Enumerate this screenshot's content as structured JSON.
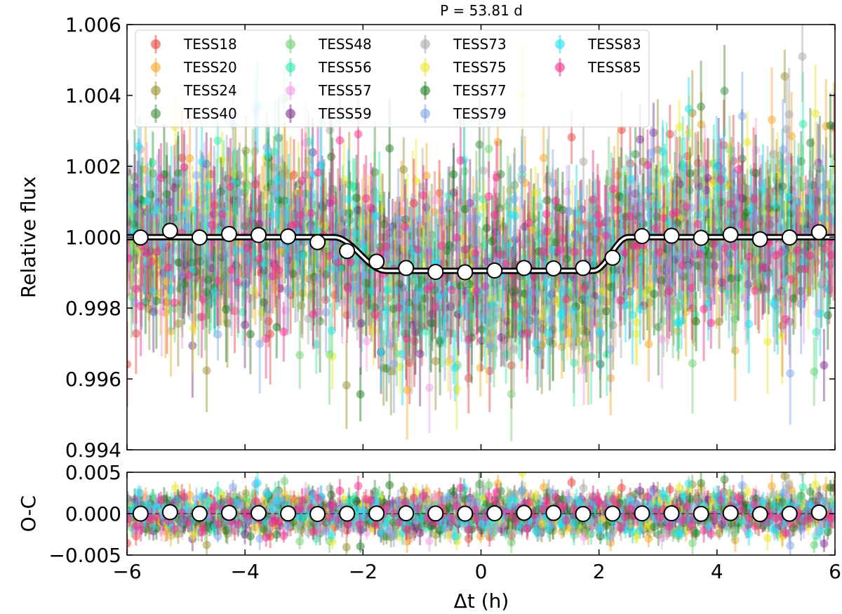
{
  "chart_data": [
    {
      "type": "scatter",
      "title": "P = 53.81 d",
      "xlabel": "",
      "ylabel": "Relative flux",
      "xlim": [
        -6,
        6
      ],
      "ylim": [
        0.994,
        1.006
      ],
      "x_ticks": [
        -6,
        -4,
        -2,
        0,
        2,
        4,
        6
      ],
      "y_ticks": [
        0.994,
        0.996,
        0.998,
        1.0,
        1.002,
        1.004,
        1.006
      ],
      "y_tick_labels": [
        "0.994",
        "0.996",
        "0.998",
        "1.000",
        "1.002",
        "1.004",
        "1.006"
      ],
      "legend_position": "top-left",
      "series": [
        {
          "name": "TESS18",
          "color": "#e8413c"
        },
        {
          "name": "TESS20",
          "color": "#f5a623"
        },
        {
          "name": "TESS24",
          "color": "#9a8f2e"
        },
        {
          "name": "TESS40",
          "color": "#3e8e3e"
        },
        {
          "name": "TESS48",
          "color": "#6fcf6f"
        },
        {
          "name": "TESS56",
          "color": "#2ee8a8"
        },
        {
          "name": "TESS57",
          "color": "#f09be6"
        },
        {
          "name": "TESS59",
          "color": "#7d2f8e"
        },
        {
          "name": "TESS73",
          "color": "#a8a8a8"
        },
        {
          "name": "TESS75",
          "color": "#e8e82a"
        },
        {
          "name": "TESS77",
          "color": "#1f7a1f"
        },
        {
          "name": "TESS79",
          "color": "#7fa3e8"
        },
        {
          "name": "TESS83",
          "color": "#22e0f0"
        },
        {
          "name": "TESS85",
          "color": "#ee2d8a"
        }
      ],
      "scatter_spread": 0.0013,
      "model": {
        "name": "transit model",
        "baseline": 1.0,
        "depth": 0.00095,
        "ingress_start": -2.5,
        "ingress_end": -1.6,
        "egress_start": 1.9,
        "egress_end": 2.5
      },
      "binned": {
        "x": [
          -5.77,
          -5.27,
          -4.77,
          -4.27,
          -3.77,
          -3.27,
          -2.77,
          -2.27,
          -1.77,
          -1.27,
          -0.77,
          -0.27,
          0.23,
          0.73,
          1.23,
          1.73,
          2.23,
          2.73,
          3.23,
          3.73,
          4.23,
          4.73,
          5.23,
          5.73
        ],
        "y": [
          0.99999,
          1.00018,
          0.99999,
          1.00009,
          1.00006,
          1.00002,
          0.99986,
          0.99961,
          0.99931,
          0.99913,
          0.99902,
          0.99901,
          0.99906,
          0.99913,
          0.99912,
          0.99913,
          0.99942,
          1.00003,
          1.00004,
          0.99998,
          1.00007,
          0.99994,
          0.99999,
          1.00014
        ]
      }
    },
    {
      "type": "scatter",
      "title": "",
      "xlabel": "Δt (h)",
      "ylabel": "O-C",
      "xlim": [
        -6,
        6
      ],
      "ylim": [
        -0.005,
        0.005
      ],
      "x_ticks": [
        -6,
        -4,
        -2,
        0,
        2,
        4,
        6
      ],
      "x_tick_labels": [
        "−6",
        "−4",
        "−2",
        "0",
        "2",
        "4",
        "6"
      ],
      "y_ticks": [
        -0.005,
        0.0,
        0.005
      ],
      "y_tick_labels": [
        "−0.005",
        "0.000",
        "0.005"
      ],
      "zero_line": 0.0,
      "scatter_spread": 0.0013,
      "binned": {
        "x": [
          -5.77,
          -5.27,
          -4.77,
          -4.27,
          -3.77,
          -3.27,
          -2.77,
          -2.27,
          -1.77,
          -1.27,
          -0.77,
          -0.27,
          0.23,
          0.73,
          1.23,
          1.73,
          2.23,
          2.73,
          3.23,
          3.73,
          4.23,
          4.73,
          5.23,
          5.73
        ],
        "y": [
          0.0,
          0.00018,
          0.0,
          0.0001,
          6e-05,
          2e-05,
          -4e-05,
          0.0,
          2e-05,
          4e-05,
          2e-05,
          0.0,
          4e-05,
          0.0001,
          8e-05,
          -4e-05,
          1e-05,
          3e-05,
          4e-05,
          -2e-05,
          7e-05,
          -6e-05,
          -1e-05,
          0.00014
        ]
      }
    }
  ]
}
